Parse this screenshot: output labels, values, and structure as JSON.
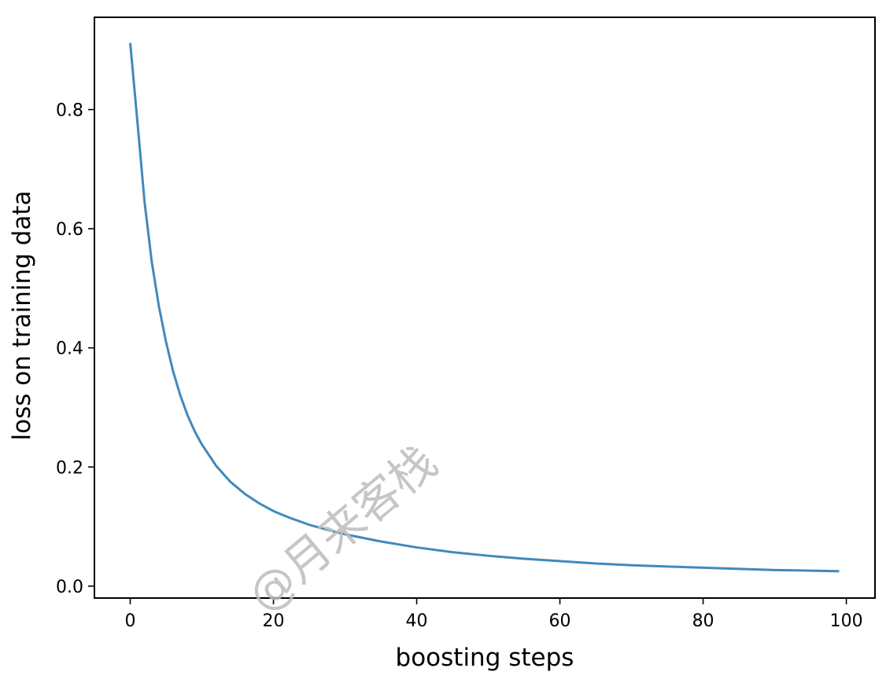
{
  "chart_data": {
    "type": "line",
    "title": "",
    "xlabel": "boosting steps",
    "ylabel": "loss on training data",
    "xlim": [
      -5,
      104
    ],
    "ylim": [
      -0.02,
      0.955
    ],
    "xticks": [
      0,
      20,
      40,
      60,
      80,
      100
    ],
    "xtick_labels": [
      "0",
      "20",
      "40",
      "60",
      "80",
      "100"
    ],
    "yticks": [
      0.0,
      0.2,
      0.4,
      0.6,
      0.8
    ],
    "ytick_labels": [
      "0.0",
      "0.2",
      "0.4",
      "0.6",
      "0.8"
    ],
    "grid": false,
    "series": [
      {
        "color": "#4189bc",
        "x": [
          0,
          1,
          2,
          3,
          4,
          5,
          6,
          7,
          8,
          9,
          10,
          12,
          14,
          16,
          18,
          20,
          22,
          25,
          28,
          30,
          35,
          40,
          45,
          50,
          55,
          60,
          65,
          70,
          75,
          80,
          85,
          90,
          95,
          99
        ],
        "y": [
          0.912,
          0.78,
          0.645,
          0.545,
          0.47,
          0.41,
          0.36,
          0.32,
          0.287,
          0.26,
          0.238,
          0.202,
          0.175,
          0.155,
          0.139,
          0.126,
          0.116,
          0.103,
          0.093,
          0.087,
          0.075,
          0.065,
          0.057,
          0.051,
          0.046,
          0.042,
          0.038,
          0.035,
          0.033,
          0.031,
          0.029,
          0.027,
          0.026,
          0.025
        ]
      }
    ]
  },
  "watermark": {
    "text": "@月来客栈"
  }
}
